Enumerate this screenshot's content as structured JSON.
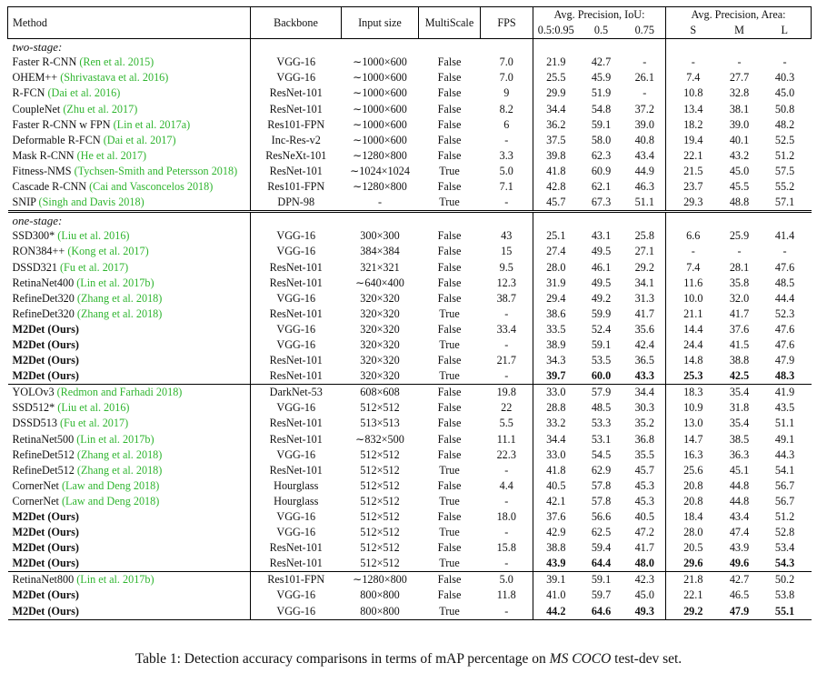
{
  "table": {
    "header": {
      "columns": [
        "Method",
        "Backbone",
        "Input size",
        "MultiScale",
        "FPS"
      ],
      "ap_iou": {
        "title": "Avg. Precision, IoU:",
        "columns": [
          "0.5:0.95",
          "0.5",
          "0.75"
        ]
      },
      "ap_area": {
        "title": "Avg. Precision, Area:",
        "columns": [
          "S",
          "M",
          "L"
        ]
      }
    },
    "sections": [
      {
        "label": "two-stage:",
        "groups": [
          {
            "rows": [
              {
                "method": "Faster R-CNN",
                "citation": "(Ren et al. 2015)",
                "cells": [
                  "VGG-16",
                  "∼1000×600",
                  "False",
                  "7.0",
                  "21.9",
                  "42.7",
                  "-",
                  "-",
                  "-",
                  "-"
                ]
              },
              {
                "method": "OHEM++",
                "citation": "(Shrivastava et al. 2016)",
                "cells": [
                  "VGG-16",
                  "∼1000×600",
                  "False",
                  "7.0",
                  "25.5",
                  "45.9",
                  "26.1",
                  "7.4",
                  "27.7",
                  "40.3"
                ]
              },
              {
                "method": "R-FCN",
                "citation": "(Dai et al. 2016)",
                "cells": [
                  "ResNet-101",
                  "∼1000×600",
                  "False",
                  "9",
                  "29.9",
                  "51.9",
                  "-",
                  "10.8",
                  "32.8",
                  "45.0"
                ]
              },
              {
                "method": "CoupleNet",
                "citation": "(Zhu et al. 2017)",
                "cells": [
                  "ResNet-101",
                  "∼1000×600",
                  "False",
                  "8.2",
                  "34.4",
                  "54.8",
                  "37.2",
                  "13.4",
                  "38.1",
                  "50.8"
                ]
              },
              {
                "method": "Faster R-CNN w FPN",
                "citation": "(Lin et al. 2017a)",
                "cells": [
                  "Res101-FPN",
                  "∼1000×600",
                  "False",
                  "6",
                  "36.2",
                  "59.1",
                  "39.0",
                  "18.2",
                  "39.0",
                  "48.2"
                ]
              },
              {
                "method": "Deformable R-FCN",
                "citation": "(Dai et al. 2017)",
                "cells": [
                  "Inc-Res-v2",
                  "∼1000×600",
                  "False",
                  "-",
                  "37.5",
                  "58.0",
                  "40.8",
                  "19.4",
                  "40.1",
                  "52.5"
                ]
              },
              {
                "method": "Mask R-CNN",
                "citation": "(He et al. 2017)",
                "cells": [
                  "ResNeXt-101",
                  "∼1280×800",
                  "False",
                  "3.3",
                  "39.8",
                  "62.3",
                  "43.4",
                  "22.1",
                  "43.2",
                  "51.2"
                ]
              },
              {
                "method": "Fitness-NMS",
                "citation": "(Tychsen-Smith and Petersson 2018)",
                "cells": [
                  "ResNet-101",
                  "∼1024×1024",
                  "True",
                  "5.0",
                  "41.8",
                  "60.9",
                  "44.9",
                  "21.5",
                  "45.0",
                  "57.5"
                ]
              },
              {
                "method": "Cascade R-CNN",
                "citation": "(Cai and Vasconcelos 2018)",
                "cells": [
                  "Res101-FPN",
                  "∼1280×800",
                  "False",
                  "7.1",
                  "42.8",
                  "62.1",
                  "46.3",
                  "23.7",
                  "45.5",
                  "55.2"
                ]
              },
              {
                "method": "SNIP",
                "citation": "(Singh and Davis 2018)",
                "cells": [
                  "DPN-98",
                  "-",
                  "True",
                  "-",
                  "45.7",
                  "67.3",
                  "51.1",
                  "29.3",
                  "48.8",
                  "57.1"
                ]
              }
            ]
          }
        ]
      },
      {
        "label": "one-stage:",
        "groups": [
          {
            "rows": [
              {
                "method": "SSD300*",
                "citation": "(Liu et al. 2016)",
                "cells": [
                  "VGG-16",
                  "300×300",
                  "False",
                  "43",
                  "25.1",
                  "43.1",
                  "25.8",
                  "6.6",
                  "25.9",
                  "41.4"
                ]
              },
              {
                "method": "RON384++",
                "citation": "(Kong et al. 2017)",
                "cells": [
                  "VGG-16",
                  "384×384",
                  "False",
                  "15",
                  "27.4",
                  "49.5",
                  "27.1",
                  "-",
                  "-",
                  "-"
                ]
              },
              {
                "method": "DSSD321",
                "citation": "(Fu et al. 2017)",
                "cells": [
                  "ResNet-101",
                  "321×321",
                  "False",
                  "9.5",
                  "28.0",
                  "46.1",
                  "29.2",
                  "7.4",
                  "28.1",
                  "47.6"
                ]
              },
              {
                "method": "RetinaNet400",
                "citation": "(Lin et al. 2017b)",
                "cells": [
                  "ResNet-101",
                  "∼640×400",
                  "False",
                  "12.3",
                  "31.9",
                  "49.5",
                  "34.1",
                  "11.6",
                  "35.8",
                  "48.5"
                ]
              },
              {
                "method": "RefineDet320",
                "citation": "(Zhang et al. 2018)",
                "cells": [
                  "VGG-16",
                  "320×320",
                  "False",
                  "38.7",
                  "29.4",
                  "49.2",
                  "31.3",
                  "10.0",
                  "32.0",
                  "44.4"
                ]
              },
              {
                "method": "RefineDet320",
                "citation": "(Zhang et al. 2018)",
                "cells": [
                  "ResNet-101",
                  "320×320",
                  "True",
                  "-",
                  "38.6",
                  "59.9",
                  "41.7",
                  "21.1",
                  "41.7",
                  "52.3"
                ]
              },
              {
                "method": "M2Det (Ours)",
                "cells": [
                  "VGG-16",
                  "320×320",
                  "False",
                  "33.4",
                  "33.5",
                  "52.4",
                  "35.6",
                  "14.4",
                  "37.6",
                  "47.6"
                ],
                "bold": [
                  0
                ]
              },
              {
                "method": "M2Det (Ours)",
                "cells": [
                  "VGG-16",
                  "320×320",
                  "True",
                  "-",
                  "38.9",
                  "59.1",
                  "42.4",
                  "24.4",
                  "41.5",
                  "47.6"
                ],
                "bold": [
                  0
                ]
              },
              {
                "method": "M2Det (Ours)",
                "cells": [
                  "ResNet-101",
                  "320×320",
                  "False",
                  "21.7",
                  "34.3",
                  "53.5",
                  "36.5",
                  "14.8",
                  "38.8",
                  "47.9"
                ],
                "bold": [
                  0
                ]
              },
              {
                "method": "M2Det (Ours)",
                "cells": [
                  "ResNet-101",
                  "320×320",
                  "True",
                  "-",
                  "39.7",
                  "60.0",
                  "43.3",
                  "25.3",
                  "42.5",
                  "48.3"
                ],
                "bold": [
                  0,
                  5,
                  6,
                  7,
                  8,
                  9,
                  10
                ]
              }
            ]
          },
          {
            "rows": [
              {
                "method": "YOLOv3",
                "citation": "(Redmon and Farhadi 2018)",
                "cells": [
                  "DarkNet-53",
                  "608×608",
                  "False",
                  "19.8",
                  "33.0",
                  "57.9",
                  "34.4",
                  "18.3",
                  "35.4",
                  "41.9"
                ]
              },
              {
                "method": "SSD512*",
                "citation": "(Liu et al. 2016)",
                "cells": [
                  "VGG-16",
                  "512×512",
                  "False",
                  "22",
                  "28.8",
                  "48.5",
                  "30.3",
                  "10.9",
                  "31.8",
                  "43.5"
                ]
              },
              {
                "method": "DSSD513",
                "citation": "(Fu et al. 2017)",
                "cells": [
                  "ResNet-101",
                  "513×513",
                  "False",
                  "5.5",
                  "33.2",
                  "53.3",
                  "35.2",
                  "13.0",
                  "35.4",
                  "51.1"
                ]
              },
              {
                "method": "RetinaNet500",
                "citation": "(Lin et al. 2017b)",
                "cells": [
                  "ResNet-101",
                  "∼832×500",
                  "False",
                  "11.1",
                  "34.4",
                  "53.1",
                  "36.8",
                  "14.7",
                  "38.5",
                  "49.1"
                ]
              },
              {
                "method": "RefineDet512",
                "citation": "(Zhang et al. 2018)",
                "cells": [
                  "VGG-16",
                  "512×512",
                  "False",
                  "22.3",
                  "33.0",
                  "54.5",
                  "35.5",
                  "16.3",
                  "36.3",
                  "44.3"
                ]
              },
              {
                "method": "RefineDet512",
                "citation": "(Zhang et al. 2018)",
                "cells": [
                  "ResNet-101",
                  "512×512",
                  "True",
                  "-",
                  "41.8",
                  "62.9",
                  "45.7",
                  "25.6",
                  "45.1",
                  "54.1"
                ]
              },
              {
                "method": "CornerNet",
                "citation": "(Law and Deng 2018)",
                "cells": [
                  "Hourglass",
                  "512×512",
                  "False",
                  "4.4",
                  "40.5",
                  "57.8",
                  "45.3",
                  "20.8",
                  "44.8",
                  "56.7"
                ]
              },
              {
                "method": "CornerNet",
                "citation": "(Law and Deng 2018)",
                "cells": [
                  "Hourglass",
                  "512×512",
                  "True",
                  "-",
                  "42.1",
                  "57.8",
                  "45.3",
                  "20.8",
                  "44.8",
                  "56.7"
                ]
              },
              {
                "method": "M2Det (Ours)",
                "cells": [
                  "VGG-16",
                  "512×512",
                  "False",
                  "18.0",
                  "37.6",
                  "56.6",
                  "40.5",
                  "18.4",
                  "43.4",
                  "51.2"
                ],
                "bold": [
                  0
                ]
              },
              {
                "method": "M2Det (Ours)",
                "cells": [
                  "VGG-16",
                  "512×512",
                  "True",
                  "-",
                  "42.9",
                  "62.5",
                  "47.2",
                  "28.0",
                  "47.4",
                  "52.8"
                ],
                "bold": [
                  0
                ]
              },
              {
                "method": "M2Det (Ours)",
                "cells": [
                  "ResNet-101",
                  "512×512",
                  "False",
                  "15.8",
                  "38.8",
                  "59.4",
                  "41.7",
                  "20.5",
                  "43.9",
                  "53.4"
                ],
                "bold": [
                  0
                ]
              },
              {
                "method": "M2Det (Ours)",
                "cells": [
                  "ResNet-101",
                  "512×512",
                  "True",
                  "-",
                  "43.9",
                  "64.4",
                  "48.0",
                  "29.6",
                  "49.6",
                  "54.3"
                ],
                "bold": [
                  0,
                  5,
                  6,
                  7,
                  8,
                  9,
                  10
                ]
              }
            ]
          },
          {
            "rows": [
              {
                "method": "RetinaNet800",
                "citation": "(Lin et al. 2017b)",
                "cells": [
                  "Res101-FPN",
                  "∼1280×800",
                  "False",
                  "5.0",
                  "39.1",
                  "59.1",
                  "42.3",
                  "21.8",
                  "42.7",
                  "50.2"
                ]
              },
              {
                "method": "M2Det (Ours)",
                "cells": [
                  "VGG-16",
                  "800×800",
                  "False",
                  "11.8",
                  "41.0",
                  "59.7",
                  "45.0",
                  "22.1",
                  "46.5",
                  "53.8"
                ],
                "bold": [
                  0
                ]
              },
              {
                "method": "M2Det (Ours)",
                "cells": [
                  "VGG-16",
                  "800×800",
                  "True",
                  "-",
                  "44.2",
                  "64.6",
                  "49.3",
                  "29.2",
                  "47.9",
                  "55.1"
                ],
                "bold": [
                  0,
                  5,
                  6,
                  7,
                  8,
                  9,
                  10
                ]
              }
            ]
          }
        ]
      }
    ]
  },
  "caption": {
    "prefix": "Table 1: Detection accuracy comparisons in terms of mAP percentage on ",
    "emphasis": "MS COCO",
    "suffix": " test-dev set."
  }
}
